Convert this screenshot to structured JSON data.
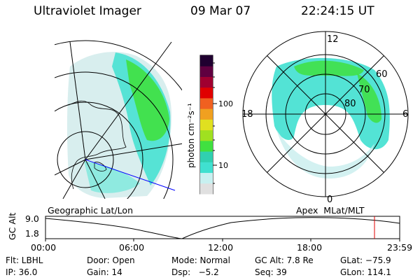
{
  "header": {
    "instrument": "Ultraviolet Imager",
    "date": "09 Mar 07",
    "time": "22:24:15 UT"
  },
  "colorbar": {
    "label": "photon cm⁻²s⁻¹",
    "ticks": [
      "100",
      "10"
    ],
    "colors": [
      "#e0e0e0",
      "#c8f0f0",
      "#40e0d0",
      "#30d0b0",
      "#40e040",
      "#a0e020",
      "#e0e020",
      "#f0a020",
      "#f06020",
      "#e00000",
      "#a00030",
      "#600040",
      "#200030"
    ]
  },
  "polar_plot": {
    "mlt_labels": {
      "top": "12",
      "right": "6",
      "bottom": "0",
      "left": "18"
    },
    "lat_labels": [
      "60",
      "70",
      "80"
    ]
  },
  "timeline": {
    "left_title": "Geographic Lat/Lon",
    "right_title": "Apex  MLat/MLT",
    "axis_title": "GC Alt",
    "y_ticks": [
      "9.0",
      "1.8"
    ],
    "x_ticks": [
      "00:00",
      "06:00",
      "12:00",
      "18:00",
      "23:59"
    ],
    "current_marker_time": "22:24"
  },
  "footer": {
    "flt": "Flt: LBHL",
    "door": "Door: Open",
    "mode": "Mode: Normal",
    "gc_alt": "GC Alt: 7.8 Re",
    "glat": "GLat: −75.9",
    "ip": "IP: 36.0",
    "gain": "Gain: 14",
    "dsp": "Dsp:   −5.2",
    "seq": "Seq: 39",
    "glon": "GLon: 114.1"
  }
}
